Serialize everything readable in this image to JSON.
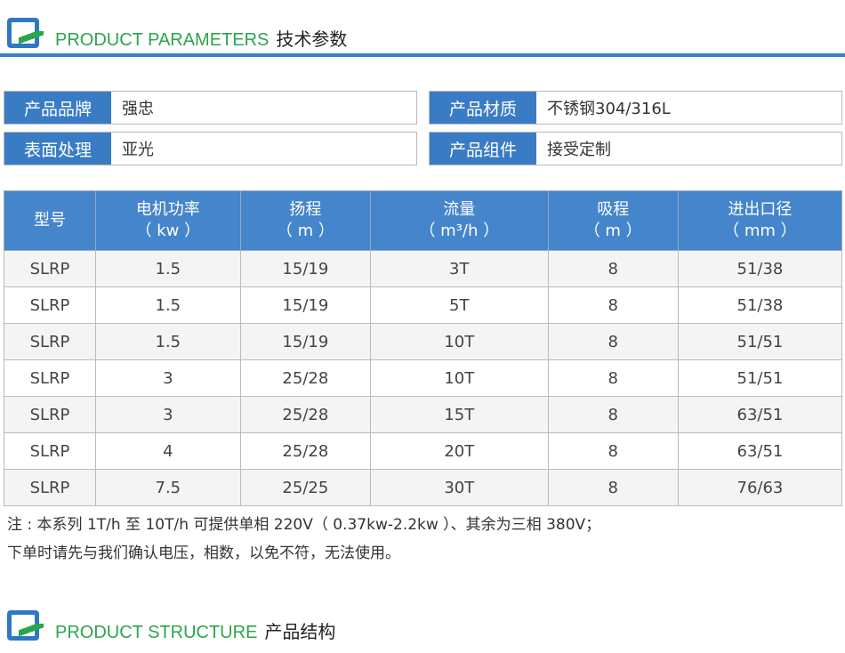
{
  "section1": {
    "title_en": "PRODUCT PARAMETERS",
    "title_cn": "技术参数"
  },
  "attributes": [
    {
      "key": "产品品牌",
      "value": "强忠"
    },
    {
      "key": "产品材质",
      "value": "不锈钢304/316L"
    },
    {
      "key": "表面处理",
      "value": "亚光"
    },
    {
      "key": "产品组件",
      "value": "接受定制"
    }
  ],
  "table": {
    "headers": [
      [
        "型号",
        ""
      ],
      [
        "电机功率",
        "（ kw ）"
      ],
      [
        "扬程",
        "（ m ）"
      ],
      [
        "流量",
        "（ m³/h ）"
      ],
      [
        "吸程",
        "（ m ）"
      ],
      [
        "进出口径",
        "（ mm ）"
      ]
    ],
    "rows": [
      [
        "SLRP",
        "1.5",
        "15/19",
        "3T",
        "8",
        "51/38"
      ],
      [
        "SLRP",
        "1.5",
        "15/19",
        "5T",
        "8",
        "51/38"
      ],
      [
        "SLRP",
        "1.5",
        "15/19",
        "10T",
        "8",
        "51/51"
      ],
      [
        "SLRP",
        "3",
        "25/28",
        "10T",
        "8",
        "51/51"
      ],
      [
        "SLRP",
        "3",
        "25/28",
        "15T",
        "8",
        "63/51"
      ],
      [
        "SLRP",
        "4",
        "25/28",
        "20T",
        "8",
        "63/51"
      ],
      [
        "SLRP",
        "7.5",
        "25/25",
        "30T",
        "8",
        "76/63"
      ]
    ]
  },
  "notes": [
    "注 : 本系列 1T/h 至 10T/h 可提供单相 220V（ 0.37kw-2.2kw ）、其余为三相 380V；",
    "下单时请先与我们确认电压，相数，以免不符，无法使用。"
  ],
  "section2": {
    "title_en": "PRODUCT STRUCTURE",
    "title_cn": "产品结构"
  }
}
